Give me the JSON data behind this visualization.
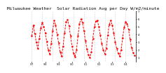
{
  "title": "Milwaukee Weather  Solar Radiation Avg per Day W/m2/minute",
  "title_fontsize": 4.5,
  "bg_color": "#ffffff",
  "line_color": "#ff0000",
  "grid_color": "#aaaaaa",
  "ylabel_right": true,
  "y_values": [
    3.8,
    5.2,
    4.1,
    3.0,
    2.2,
    3.5,
    4.8,
    5.5,
    5.0,
    4.2,
    3.1,
    2.0,
    1.5,
    2.8,
    4.5,
    5.8,
    5.2,
    4.0,
    2.9,
    1.8,
    1.2,
    2.5,
    4.2,
    5.6,
    5.9,
    5.1,
    3.8,
    2.5,
    1.6,
    1.1,
    2.0,
    3.8,
    5.4,
    6.0,
    5.5,
    4.5,
    3.2,
    2.1,
    1.4,
    1.0,
    1.8,
    3.5,
    5.0,
    5.7,
    5.8,
    5.0,
    3.9,
    2.8,
    2.0,
    1.5,
    2.2,
    3.9,
    5.3,
    5.8,
    5.2,
    4.2,
    3.0,
    2.2,
    1.6,
    1.2,
    2.0,
    3.6,
    4.9,
    5.6,
    5.4,
    4.6,
    3.4,
    2.3,
    1.7,
    1.3
  ],
  "ylim": [
    0.5,
    7.0
  ],
  "yticks": [
    1,
    2,
    3,
    4,
    5,
    6,
    7
  ],
  "num_points": 70,
  "grid_interval": 7,
  "x_tick_labels": [
    "'97",
    "'98",
    "'99",
    "'00",
    "'01",
    "'02",
    "'03",
    "'04"
  ],
  "x_tick_positions": [
    0,
    9,
    18,
    27,
    36,
    45,
    54,
    63
  ]
}
